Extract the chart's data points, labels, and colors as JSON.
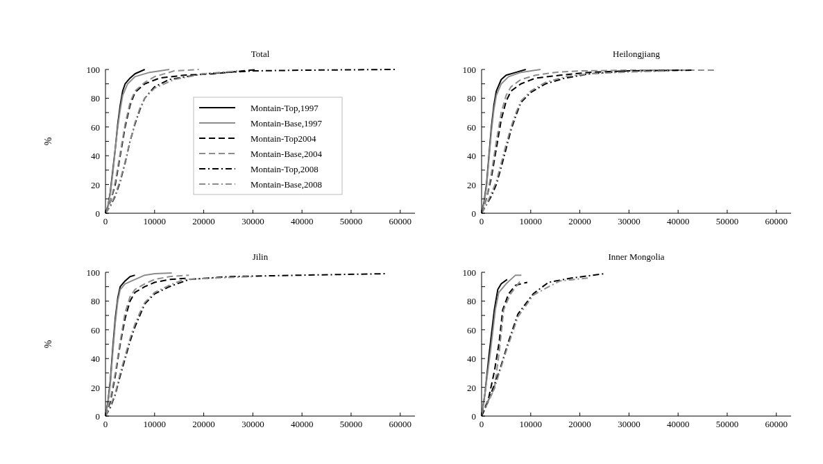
{
  "chart_data": [
    {
      "type": "line",
      "title": "Total",
      "ylabel": "%",
      "xlim": [
        0,
        63000
      ],
      "ylim": [
        0,
        100
      ],
      "xticks": [
        0,
        10000,
        20000,
        30000,
        40000,
        50000,
        60000
      ],
      "yticks": [
        0,
        {
          "value": 10,
          "label": null
        },
        20,
        {
          "value": 30,
          "label": null
        },
        40,
        {
          "value": 50,
          "label": null
        },
        60,
        {
          "value": 70,
          "label": null
        },
        80,
        {
          "value": 90,
          "label": null
        },
        100
      ],
      "legend": "right",
      "marker": "none",
      "series": [
        {
          "name": "Montain-Top,1997",
          "color": "#000000",
          "line_style": "solid",
          "x": [
            0,
            500,
            1000,
            1500,
            2000,
            2500,
            3000,
            3500,
            4000,
            5000,
            6000,
            8000
          ],
          "values": [
            0,
            5,
            15,
            30,
            45,
            62,
            75,
            85,
            90,
            94,
            97,
            100
          ]
        },
        {
          "name": "Montain-Base,1997",
          "color": "#8c8c8c",
          "line_style": "solid",
          "x": [
            0,
            500,
            1000,
            1500,
            2000,
            2500,
            3000,
            3500,
            4500,
            6000,
            9000,
            13000
          ],
          "values": [
            0,
            5,
            14,
            28,
            45,
            60,
            72,
            82,
            90,
            95,
            98,
            100
          ]
        },
        {
          "name": "Montain-Top2004",
          "color": "#000000",
          "line_style": "dashed",
          "x": [
            0,
            1000,
            2000,
            3000,
            4000,
            5000,
            6000,
            8000,
            11000,
            16000,
            22000,
            28000,
            31000
          ],
          "values": [
            0,
            8,
            20,
            40,
            60,
            75,
            84,
            90,
            94,
            96,
            97,
            99,
            100
          ]
        },
        {
          "name": "Montain-Base,2004",
          "color": "#8c8c8c",
          "line_style": "dashed",
          "x": [
            0,
            1000,
            2000,
            3000,
            4000,
            5000,
            6000,
            8000,
            10000,
            14000,
            19000
          ],
          "values": [
            0,
            8,
            22,
            42,
            62,
            77,
            85,
            91,
            95,
            99,
            100
          ]
        },
        {
          "name": "Montain-Top,2008",
          "color": "#000000",
          "line_style": "dashdot",
          "x": [
            0,
            1000,
            2000,
            3000,
            4000,
            5000,
            6000,
            7000,
            8000,
            10000,
            13000,
            20000,
            30000,
            40000,
            59000
          ],
          "values": [
            0,
            5,
            12,
            22,
            35,
            50,
            62,
            72,
            80,
            88,
            93,
            97,
            99,
            99.5,
            100
          ]
        },
        {
          "name": "Montain-Base,2008",
          "color": "#8c8c8c",
          "line_style": "dashdot",
          "x": [
            0,
            1000,
            2000,
            3000,
            4000,
            5000,
            6000,
            7000,
            8000,
            10000,
            14000,
            20000,
            27000
          ],
          "values": [
            0,
            5,
            13,
            23,
            36,
            50,
            63,
            73,
            80,
            87,
            93,
            97,
            99
          ]
        }
      ]
    },
    {
      "type": "line",
      "title": "Heilongjiang",
      "xlim": [
        0,
        63000
      ],
      "ylim": [
        0,
        100
      ],
      "xticks": [
        0,
        10000,
        20000,
        30000,
        40000,
        50000,
        60000
      ],
      "yticks": [
        0,
        {
          "value": 10,
          "label": null
        },
        20,
        {
          "value": 30,
          "label": null
        },
        40,
        {
          "value": 50,
          "label": null
        },
        60,
        {
          "value": 70,
          "label": null
        },
        80,
        {
          "value": 90,
          "label": null
        },
        100
      ],
      "marker": "none",
      "series": [
        {
          "color": "#000000",
          "line_style": "solid",
          "x": [
            0,
            500,
            1000,
            1500,
            2000,
            2500,
            3000,
            4000,
            5000,
            7000,
            9000
          ],
          "values": [
            0,
            8,
            20,
            40,
            60,
            75,
            85,
            93,
            96,
            98,
            100
          ]
        },
        {
          "color": "#8c8c8c",
          "line_style": "solid",
          "x": [
            0,
            500,
            1000,
            1500,
            2000,
            2500,
            3000,
            4000,
            5500,
            8000,
            12000
          ],
          "values": [
            0,
            7,
            18,
            38,
            57,
            72,
            82,
            90,
            95,
            98,
            100
          ]
        },
        {
          "color": "#000000",
          "line_style": "dashed",
          "x": [
            0,
            1000,
            2000,
            3000,
            4000,
            5000,
            6000,
            8000,
            11000,
            16000,
            22000,
            30000,
            41000
          ],
          "values": [
            0,
            10,
            25,
            45,
            65,
            78,
            85,
            90,
            94,
            96,
            98,
            99,
            99.5
          ]
        },
        {
          "color": "#8c8c8c",
          "line_style": "dashed",
          "x": [
            0,
            1000,
            2000,
            3000,
            4000,
            5000,
            6000,
            8000,
            11000,
            15000,
            20000,
            30000,
            47500
          ],
          "values": [
            0,
            10,
            28,
            50,
            70,
            82,
            88,
            93,
            96,
            98,
            99,
            99.5,
            99.5
          ]
        },
        {
          "color": "#000000",
          "line_style": "dashdot",
          "x": [
            0,
            1000,
            2000,
            3000,
            4000,
            5000,
            6000,
            7000,
            8000,
            10000,
            13000,
            17000,
            22000,
            30000,
            43000
          ],
          "values": [
            0,
            6,
            12,
            20,
            32,
            45,
            58,
            68,
            77,
            84,
            90,
            94,
            97,
            99,
            99.5
          ]
        },
        {
          "color": "#8c8c8c",
          "line_style": "dashdot",
          "x": [
            0,
            1000,
            2000,
            3000,
            4000,
            5000,
            6000,
            7000,
            8000,
            10000,
            13000,
            17000,
            22000,
            28000,
            38000
          ],
          "values": [
            0,
            6,
            14,
            22,
            35,
            48,
            60,
            70,
            78,
            85,
            91,
            95,
            97,
            98,
            99
          ]
        }
      ]
    },
    {
      "type": "line",
      "title": "Jilin",
      "ylabel": "%",
      "xlim": [
        0,
        63000
      ],
      "ylim": [
        0,
        100
      ],
      "xticks": [
        0,
        10000,
        20000,
        30000,
        40000,
        50000,
        60000
      ],
      "yticks": [
        0,
        {
          "value": 10,
          "label": null
        },
        20,
        {
          "value": 30,
          "label": null
        },
        40,
        {
          "value": 50,
          "label": null
        },
        60,
        {
          "value": 70,
          "label": null
        },
        80,
        {
          "value": 90,
          "label": null
        },
        100
      ],
      "marker": "none",
      "series": [
        {
          "color": "#000000",
          "line_style": "solid",
          "x": [
            0,
            500,
            1000,
            1500,
            2000,
            2500,
            3000,
            4000,
            5000,
            6000
          ],
          "values": [
            0,
            10,
            25,
            48,
            68,
            82,
            90,
            94,
            97,
            98
          ]
        },
        {
          "color": "#8c8c8c",
          "line_style": "solid",
          "x": [
            0,
            500,
            1000,
            1500,
            2000,
            2500,
            3000,
            4000,
            6000,
            8000,
            10000,
            13500
          ],
          "values": [
            0,
            9,
            23,
            45,
            65,
            80,
            88,
            92,
            95,
            98,
            99,
            99.5
          ]
        },
        {
          "color": "#000000",
          "line_style": "dashed",
          "x": [
            0,
            1000,
            2000,
            3000,
            4000,
            5000,
            6000,
            8000,
            10000,
            13000,
            17000
          ],
          "values": [
            0,
            10,
            28,
            50,
            68,
            80,
            86,
            90,
            93,
            95,
            96
          ]
        },
        {
          "color": "#8c8c8c",
          "line_style": "dashed",
          "x": [
            0,
            1000,
            2000,
            3000,
            4000,
            5000,
            6000,
            8000,
            10000,
            13000,
            17000
          ],
          "values": [
            0,
            12,
            30,
            52,
            72,
            83,
            88,
            92,
            95,
            97,
            98
          ]
        },
        {
          "color": "#000000",
          "line_style": "dashdot",
          "x": [
            0,
            1000,
            2000,
            3000,
            4000,
            5000,
            6000,
            7000,
            8000,
            10000,
            13000,
            17000,
            25000,
            40000,
            57000
          ],
          "values": [
            0,
            6,
            15,
            28,
            40,
            52,
            62,
            70,
            78,
            85,
            90,
            95,
            97,
            98,
            99
          ]
        },
        {
          "color": "#8c8c8c",
          "line_style": "dashdot",
          "x": [
            0,
            1000,
            2000,
            3000,
            4000,
            5000,
            6000,
            7000,
            8000,
            10000,
            13000,
            16000,
            22000,
            30000
          ],
          "values": [
            0,
            7,
            16,
            30,
            42,
            54,
            64,
            72,
            79,
            86,
            91,
            95,
            96,
            97
          ]
        }
      ]
    },
    {
      "type": "line",
      "title": "Inner Mongolia",
      "xlim": [
        0,
        63000
      ],
      "ylim": [
        0,
        100
      ],
      "xticks": [
        0,
        10000,
        20000,
        30000,
        40000,
        50000,
        60000
      ],
      "yticks": [
        0,
        {
          "value": 10,
          "label": null
        },
        20,
        {
          "value": 30,
          "label": null
        },
        40,
        {
          "value": 50,
          "label": null
        },
        60,
        {
          "value": 70,
          "label": null
        },
        80,
        {
          "value": 90,
          "label": null
        },
        100
      ],
      "marker": "none",
      "series": [
        {
          "color": "#000000",
          "line_style": "solid",
          "x": [
            0,
            700,
            1600,
            2600,
            3300,
            4000,
            5200
          ],
          "values": [
            0,
            16,
            45,
            74,
            88,
            92,
            95
          ]
        },
        {
          "color": "#8c8c8c",
          "line_style": "solid",
          "x": [
            0,
            700,
            1800,
            2800,
            3500,
            5000,
            6900,
            8100
          ],
          "values": [
            0,
            16,
            45,
            74,
            86,
            92,
            98,
            98
          ]
        },
        {
          "color": "#000000",
          "line_style": "dashed",
          "x": [
            0,
            1400,
            2600,
            3600,
            4300,
            5500,
            6900,
            9300
          ],
          "values": [
            0,
            12,
            31,
            52,
            74,
            85,
            91,
            93
          ]
        },
        {
          "color": "#8c8c8c",
          "line_style": "dashed",
          "x": [
            0,
            2600,
            3600,
            4500,
            5900,
            8100
          ],
          "values": [
            0,
            19,
            45,
            74,
            85,
            95
          ]
        },
        {
          "color": "#000000",
          "line_style": "dashdot",
          "x": [
            0,
            1400,
            3600,
            5500,
            7400,
            10500,
            13600,
            18300,
            24900
          ],
          "values": [
            0,
            11,
            31,
            52,
            71,
            85,
            93,
            96,
            99
          ]
        },
        {
          "color": "#8c8c8c",
          "line_style": "dashdot",
          "x": [
            0,
            200,
            2600,
            5000,
            7400,
            10500,
            13100,
            16000,
            21600
          ],
          "values": [
            0,
            3,
            19,
            45,
            69,
            84,
            89,
            94,
            96
          ]
        }
      ]
    }
  ]
}
